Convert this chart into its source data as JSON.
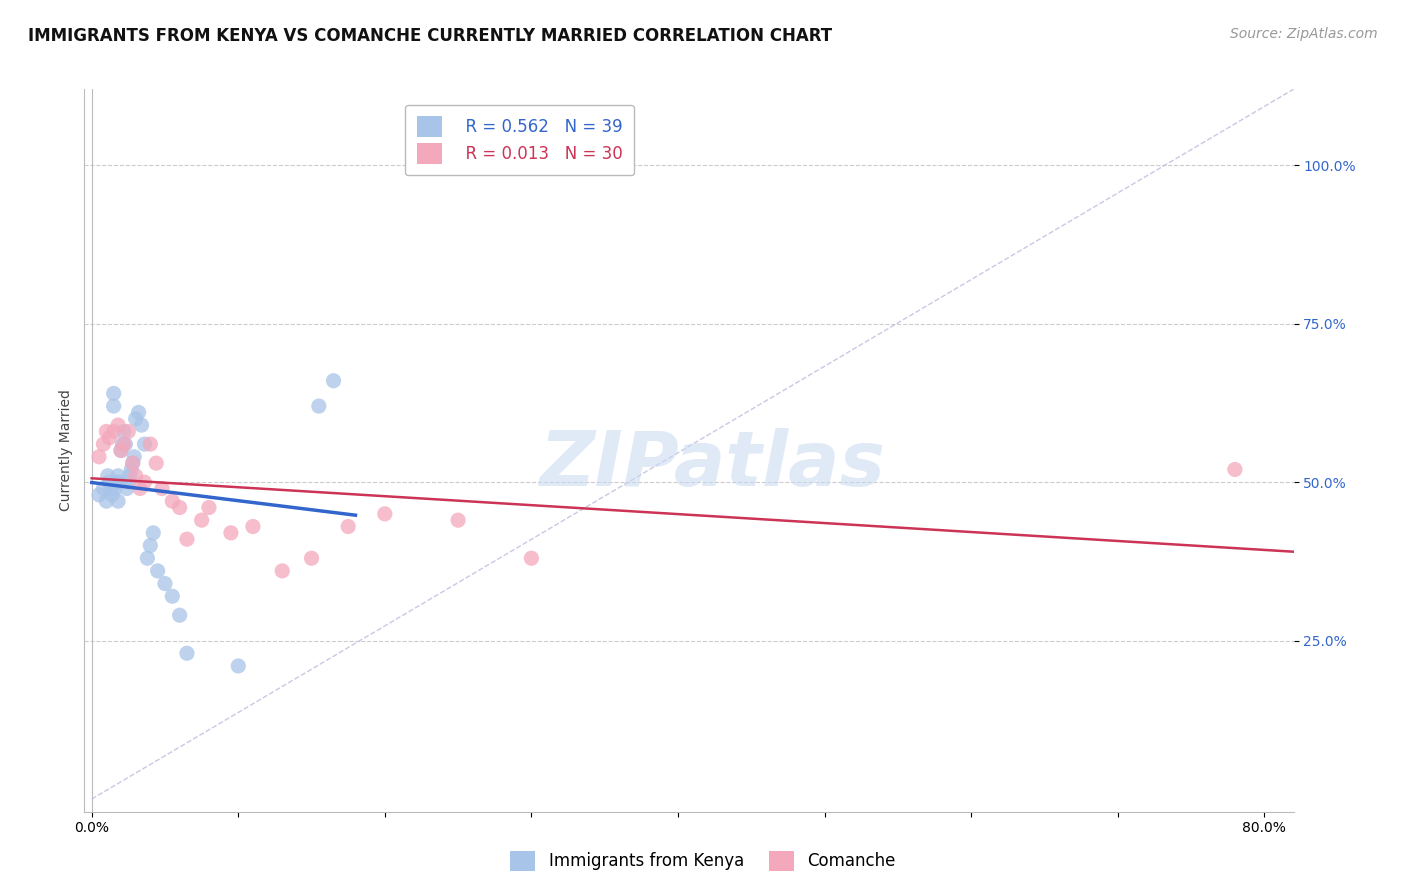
{
  "title": "IMMIGRANTS FROM KENYA VS COMANCHE CURRENTLY MARRIED CORRELATION CHART",
  "source": "Source: ZipAtlas.com",
  "xlabel_legend1": "Immigrants from Kenya",
  "xlabel_legend2": "Comanche",
  "ylabel": "Currently Married",
  "r1": 0.562,
  "n1": 39,
  "r2": 0.013,
  "n2": 30,
  "color1": "#a8c4e8",
  "color2": "#f4a8bc",
  "line1_color": "#3366cc",
  "line2_color": "#cc3355",
  "bg_color": "#ffffff",
  "grid_color": "#cccccc",
  "xlim": [
    -0.005,
    0.82
  ],
  "ylim": [
    -0.02,
    1.12
  ],
  "yticks": [
    0.25,
    0.5,
    0.75,
    1.0
  ],
  "ytick_labels": [
    "25.0%",
    "50.0%",
    "75.0%",
    "100.0%"
  ],
  "xticks": [
    0.0,
    0.1,
    0.2,
    0.3,
    0.4,
    0.5,
    0.6,
    0.7,
    0.8
  ],
  "xtick_labels": [
    "0.0%",
    "",
    "",
    "",
    "",
    "",
    "",
    "",
    "80.0%"
  ],
  "kenya_x": [
    0.005,
    0.008,
    0.01,
    0.011,
    0.012,
    0.013,
    0.014,
    0.015,
    0.015,
    0.016,
    0.017,
    0.018,
    0.018,
    0.019,
    0.02,
    0.021,
    0.022,
    0.023,
    0.024,
    0.025,
    0.026,
    0.027,
    0.028,
    0.029,
    0.03,
    0.032,
    0.034,
    0.036,
    0.038,
    0.04,
    0.042,
    0.045,
    0.05,
    0.055,
    0.06,
    0.065,
    0.1,
    0.155,
    0.165
  ],
  "kenya_y": [
    0.48,
    0.49,
    0.47,
    0.51,
    0.5,
    0.49,
    0.48,
    0.62,
    0.64,
    0.49,
    0.5,
    0.47,
    0.51,
    0.5,
    0.55,
    0.56,
    0.58,
    0.56,
    0.49,
    0.5,
    0.51,
    0.52,
    0.53,
    0.54,
    0.6,
    0.61,
    0.59,
    0.56,
    0.38,
    0.4,
    0.42,
    0.36,
    0.34,
    0.32,
    0.29,
    0.23,
    0.21,
    0.62,
    0.66
  ],
  "comanche_x": [
    0.005,
    0.008,
    0.01,
    0.012,
    0.015,
    0.018,
    0.02,
    0.022,
    0.025,
    0.028,
    0.03,
    0.033,
    0.036,
    0.04,
    0.044,
    0.048,
    0.055,
    0.06,
    0.065,
    0.075,
    0.08,
    0.095,
    0.11,
    0.13,
    0.15,
    0.175,
    0.2,
    0.25,
    0.3,
    0.78
  ],
  "comanche_y": [
    0.54,
    0.56,
    0.58,
    0.57,
    0.58,
    0.59,
    0.55,
    0.56,
    0.58,
    0.53,
    0.51,
    0.49,
    0.5,
    0.56,
    0.53,
    0.49,
    0.47,
    0.46,
    0.41,
    0.44,
    0.46,
    0.42,
    0.43,
    0.36,
    0.38,
    0.43,
    0.45,
    0.44,
    0.38,
    0.52
  ],
  "watermark": "ZIPatlas",
  "watermark_color": "#c8d8f0",
  "title_fontsize": 12,
  "axis_label_fontsize": 10,
  "tick_fontsize": 10,
  "legend_fontsize": 12,
  "source_fontsize": 10
}
